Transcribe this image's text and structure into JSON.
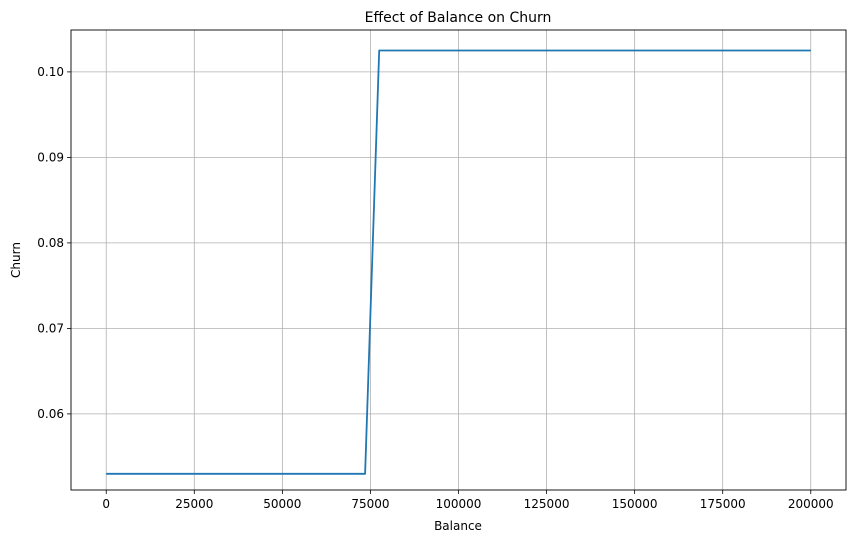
{
  "chart_data": {
    "type": "line",
    "title": "Effect of Balance on Churn",
    "xlabel": "Balance",
    "ylabel": "Churn",
    "xlim": [
      -10000,
      210000
    ],
    "ylim": [
      0.0511,
      0.1049
    ],
    "xticks": [
      0,
      25000,
      50000,
      75000,
      100000,
      125000,
      150000,
      175000,
      200000
    ],
    "yticks": [
      0.06,
      0.07,
      0.08,
      0.09,
      0.1
    ],
    "ytick_labels": [
      "0.06",
      "0.07",
      "0.08",
      "0.09",
      "0.10"
    ],
    "grid": true,
    "line_color": "#1f77b4",
    "series": [
      {
        "x": [
          0,
          73500,
          77500,
          200000
        ],
        "y": [
          0.053,
          0.053,
          0.1025,
          0.1025
        ]
      }
    ]
  }
}
